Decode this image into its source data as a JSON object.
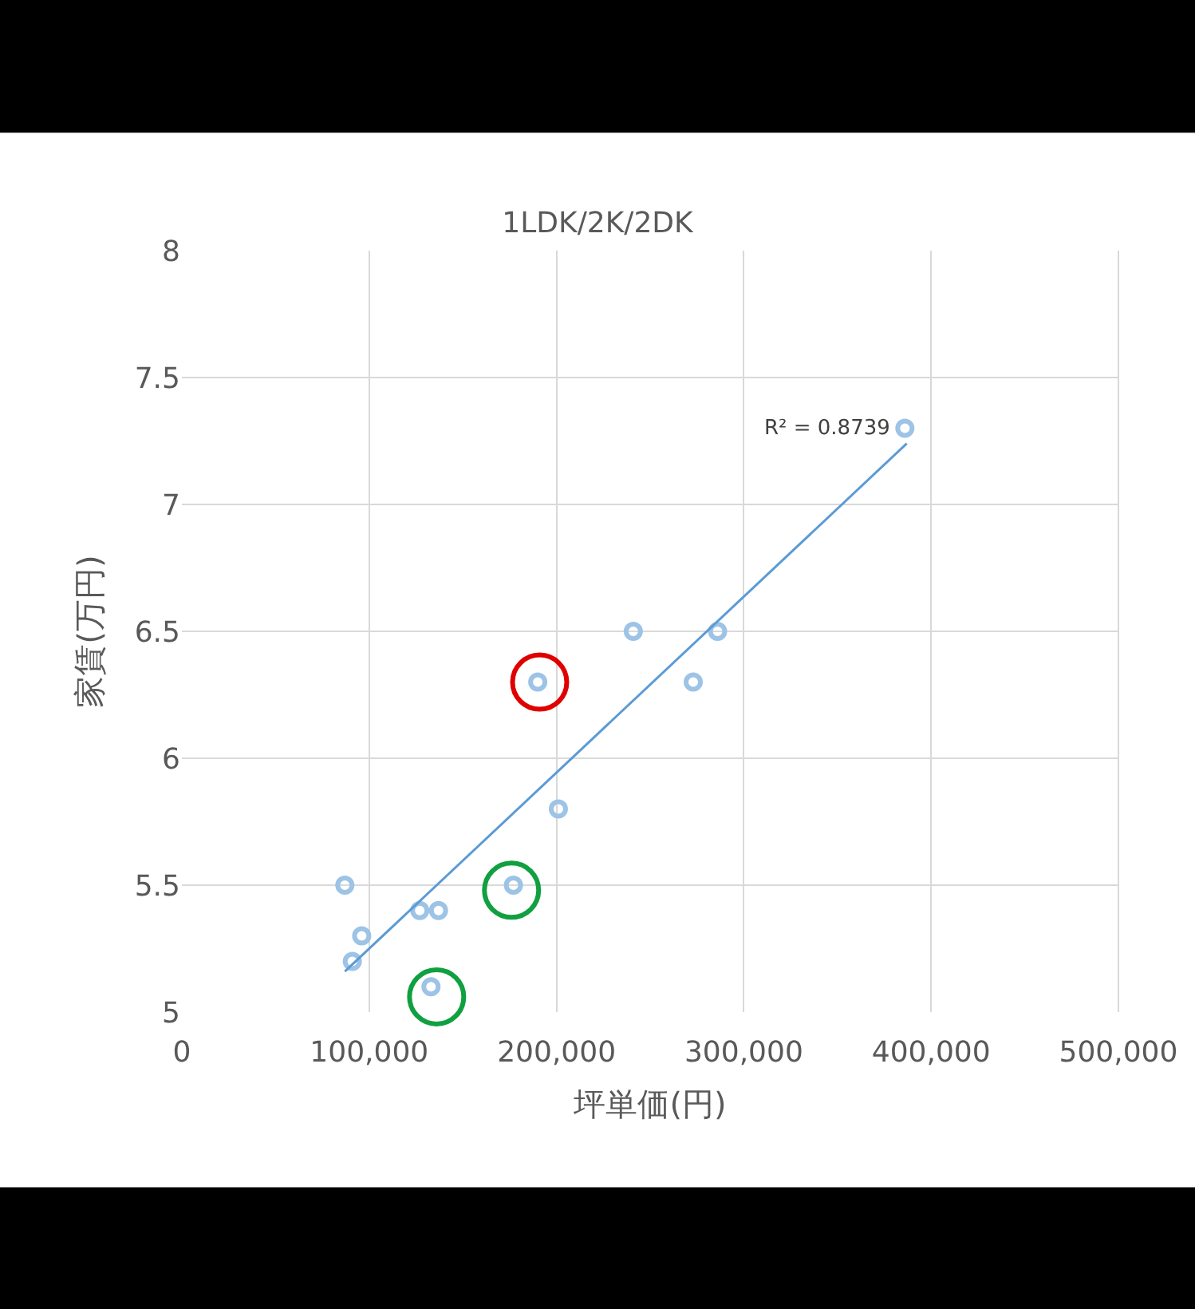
{
  "chart_data": {
    "type": "scatter",
    "title": "1LDK/2K/2DK",
    "xlabel": "坪単価(円)",
    "ylabel": "家賃(万円)",
    "series": [
      {
        "color": "#9dc3e6",
        "marker": "circle",
        "x": [
          87000,
          96000,
          91000,
          127000,
          137000,
          133000,
          177000,
          190000,
          201000,
          241000,
          273000,
          286000,
          386000
        ],
        "values": [
          5.5,
          5.3,
          5.2,
          5.4,
          5.4,
          5.1,
          5.5,
          6.3,
          5.8,
          6.5,
          6.3,
          6.5,
          7.3
        ]
      },
      {
        "type": "line",
        "color": "#5b9bd5",
        "marker": "none",
        "line_style": "solid",
        "x": [
          87000,
          387000
        ],
        "values": [
          5.16,
          7.24
        ]
      },
      {
        "color": "#e00000",
        "marker": "circle",
        "x": [
          191000
        ],
        "values": [
          6.3
        ]
      },
      {
        "color": "#10a040",
        "marker": "circle",
        "x": [
          176000,
          136000
        ],
        "values": [
          5.48,
          5.06
        ]
      }
    ],
    "annotations": [
      "R² = 0.8739"
    ],
    "xlim": [
      0,
      500000
    ],
    "xticks": [
      {
        "value": 0,
        "label": "0"
      },
      {
        "value": 100000,
        "label": "100,000"
      },
      {
        "value": 200000,
        "label": "200,000"
      },
      {
        "value": 300000,
        "label": "300,000"
      },
      {
        "value": 400000,
        "label": "400,000"
      },
      {
        "value": 500000,
        "label": "500,000"
      }
    ],
    "ylim": [
      5,
      8
    ],
    "yticks": [
      5,
      5.5,
      6,
      6.5,
      7,
      7.5,
      8
    ],
    "grid": true
  }
}
